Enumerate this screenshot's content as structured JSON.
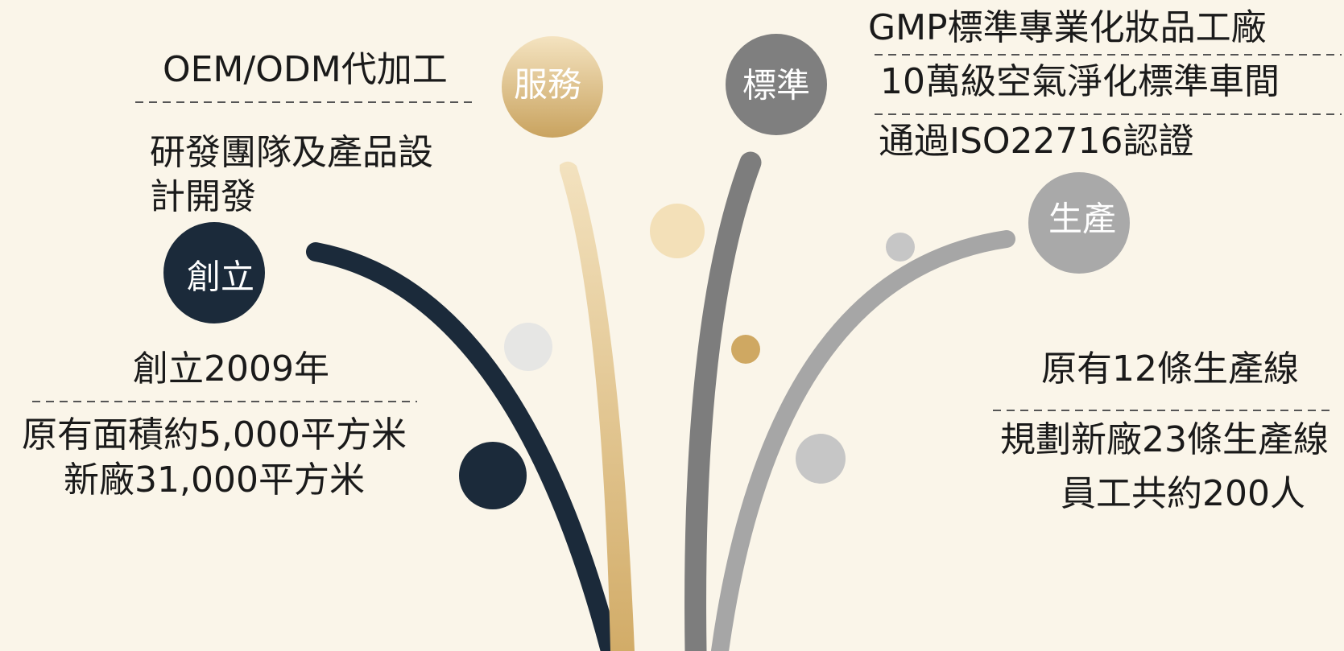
{
  "founding": {
    "label": "創立",
    "notes": [
      "創立2009年",
      "原有面積約5,000平方米",
      "新廠31,000平方米"
    ]
  },
  "service": {
    "label": "服務",
    "notes": [
      "OEM/ODM代加工",
      "研發團隊及產品設計開發"
    ]
  },
  "standard": {
    "label": "標準",
    "notes": [
      "GMP標準專業化妝品工廠",
      "10萬級空氣淨化標準車間",
      "通過ISO22716認證"
    ]
  },
  "production": {
    "label": "生產",
    "notes": [
      "原有12條生產線",
      "規劃新廠23條生產線",
      "員工共約200人"
    ]
  }
}
